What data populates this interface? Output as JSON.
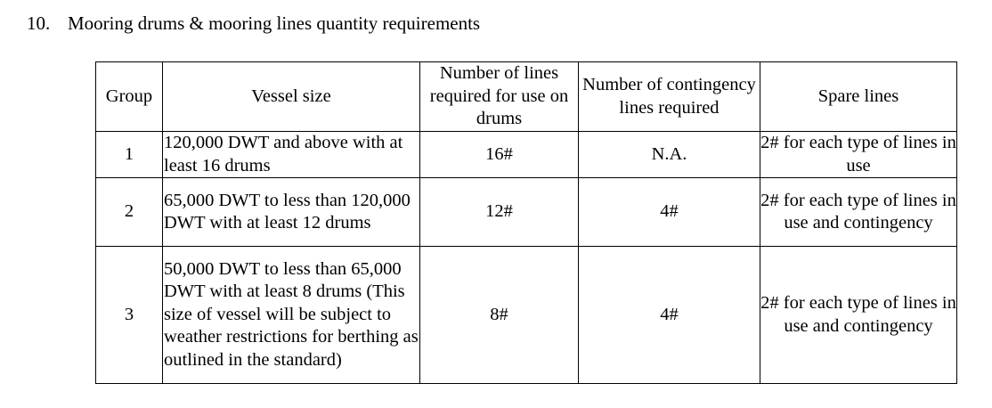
{
  "section": {
    "number": "10.",
    "title": "Mooring drums & mooring lines quantity requirements"
  },
  "table": {
    "headers": [
      "Group",
      "Vessel size",
      "Number of lines required for use on drums",
      "Number of contingency lines required",
      "Spare lines"
    ],
    "rows": [
      [
        "1",
        "120,000 DWT and above with at least 16 drums",
        "16#",
        "N.A.",
        "2# for each type of lines in use"
      ],
      [
        "2",
        "65,000 DWT to less than 120,000 DWT with at least 12 drums",
        "12#",
        "4#",
        "2# for each type of lines in use and contingency"
      ],
      [
        "3",
        "50,000 DWT to less than 65,000 DWT with at least 8 drums (This size of vessel will be subject to weather restrictions for berthing as outlined in the standard)",
        "8#",
        "4#",
        "2# for each type of lines in use and contingency"
      ]
    ]
  }
}
